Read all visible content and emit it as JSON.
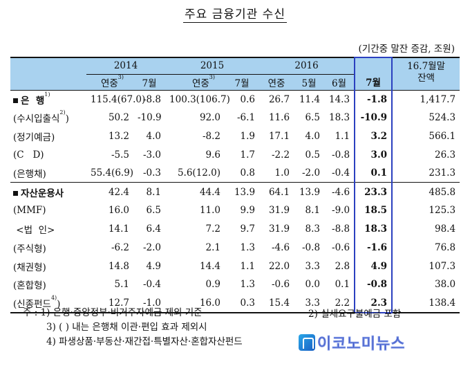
{
  "title": "주요 금융기관 수신",
  "unit": "(기간중 말잔 증감, 조원)",
  "header": {
    "years": [
      "2014",
      "2015",
      "2016"
    ],
    "last_col": [
      "16.7월말",
      "잔액"
    ],
    "sub": [
      {
        "label": "연중",
        "sup": "3)"
      },
      {
        "label": "7월",
        "sup": ""
      },
      {
        "label": "연중",
        "sup": "3)"
      },
      {
        "label": "7월",
        "sup": ""
      },
      {
        "label": "연중",
        "sup": ""
      },
      {
        "label": "5월",
        "sup": ""
      },
      {
        "label": "6월",
        "sup": ""
      },
      {
        "label": "7월",
        "sup": ""
      }
    ]
  },
  "rows": [
    {
      "label": "은  행",
      "sup": "1)",
      "bullet": true,
      "values": [
        "115.4(67.0)",
        "-8.8",
        "100.3(106.7)",
        "0.6",
        "26.7",
        "11.4",
        "14.3",
        "-1.8",
        "1,417.7"
      ]
    },
    {
      "label": "(수시입출식",
      "sup": "2)",
      "close": ")",
      "bullet": false,
      "values": [
        "50.2",
        "-10.9",
        "92.0",
        "-6.1",
        "11.6",
        "6.5",
        "18.3",
        "-10.9",
        "524.3"
      ]
    },
    {
      "label": "(정기예금)",
      "sup": "",
      "bullet": false,
      "values": [
        "13.2",
        "4.0",
        "-8.2",
        "1.9",
        "17.1",
        "4.0",
        "1.1",
        "3.2",
        "566.1"
      ]
    },
    {
      "label": "(C   D)",
      "sup": "",
      "bullet": false,
      "values": [
        "-5.5",
        "-3.0",
        "9.6",
        "1.7",
        "-2.2",
        "0.5",
        "-0.8",
        "3.0",
        "26.3"
      ]
    },
    {
      "label": "(은행채)",
      "sup": "",
      "bullet": false,
      "values": [
        "55.4(6.9)",
        "-0.3",
        "5.6(12.0)",
        "0.8",
        "1.0",
        "-2.0",
        "-0.4",
        "0.1",
        "231.3"
      ]
    },
    {
      "label": "자산운용사",
      "sup": "",
      "bullet": true,
      "values": [
        "42.4",
        "8.1",
        "44.4",
        "13.9",
        "64.1",
        "13.9",
        "-4.6",
        "23.3",
        "485.8"
      ]
    },
    {
      "label": "(MMF)",
      "sup": "",
      "bullet": false,
      "values": [
        "16.0",
        "6.5",
        "11.0",
        "9.9",
        "31.9",
        "8.1",
        "-9.0",
        "18.5",
        "125.3"
      ]
    },
    {
      "label": " <법  인>",
      "sup": "",
      "bullet": false,
      "values": [
        "14.1",
        "6.4",
        "7.2",
        "9.7",
        "31.9",
        "8.3",
        "-8.8",
        "18.3",
        "98.4"
      ]
    },
    {
      "label": "(주식형)",
      "sup": "",
      "bullet": false,
      "values": [
        "-6.2",
        "-2.0",
        "2.1",
        "1.3",
        "-4.6",
        "-0.8",
        "-0.6",
        "-1.6",
        "76.8"
      ]
    },
    {
      "label": "(채권형)",
      "sup": "",
      "bullet": false,
      "values": [
        "14.8",
        "4.9",
        "14.4",
        "1.1",
        "22.0",
        "3.3",
        "2.8",
        "4.9",
        "107.3"
      ]
    },
    {
      "label": "(혼합형)",
      "sup": "",
      "bullet": false,
      "values": [
        "5.1",
        "-0.4",
        "0.9",
        "1.3",
        "-0.6",
        "0.0",
        "0.1",
        "-0.8",
        "38.0"
      ]
    },
    {
      "label": "(신종펀드",
      "sup": "4)",
      "close": ")",
      "bullet": false,
      "values": [
        "12.7",
        "-1.0",
        "16.0",
        "0.3",
        "15.4",
        "3.3",
        "2.2",
        "2.3",
        "138.4"
      ]
    }
  ],
  "notes": {
    "n1": "주 : 1) 은행·중앙정부·비거주자예금 제외 기준",
    "n2": "2) 실세요구불예금 포함",
    "n3": "3) ( ) 내는 은행채 이관·편입 효과 제외시",
    "n4": "4) 파생상품·부동산·재간접·특별자산·혼합자산펀드"
  },
  "logo": {
    "text": "이코노미뉴스",
    "icon": "economynews-logo-icon"
  },
  "colors": {
    "header_bg": "#a9d2ef",
    "highlight_border": "#2a3fbf"
  }
}
